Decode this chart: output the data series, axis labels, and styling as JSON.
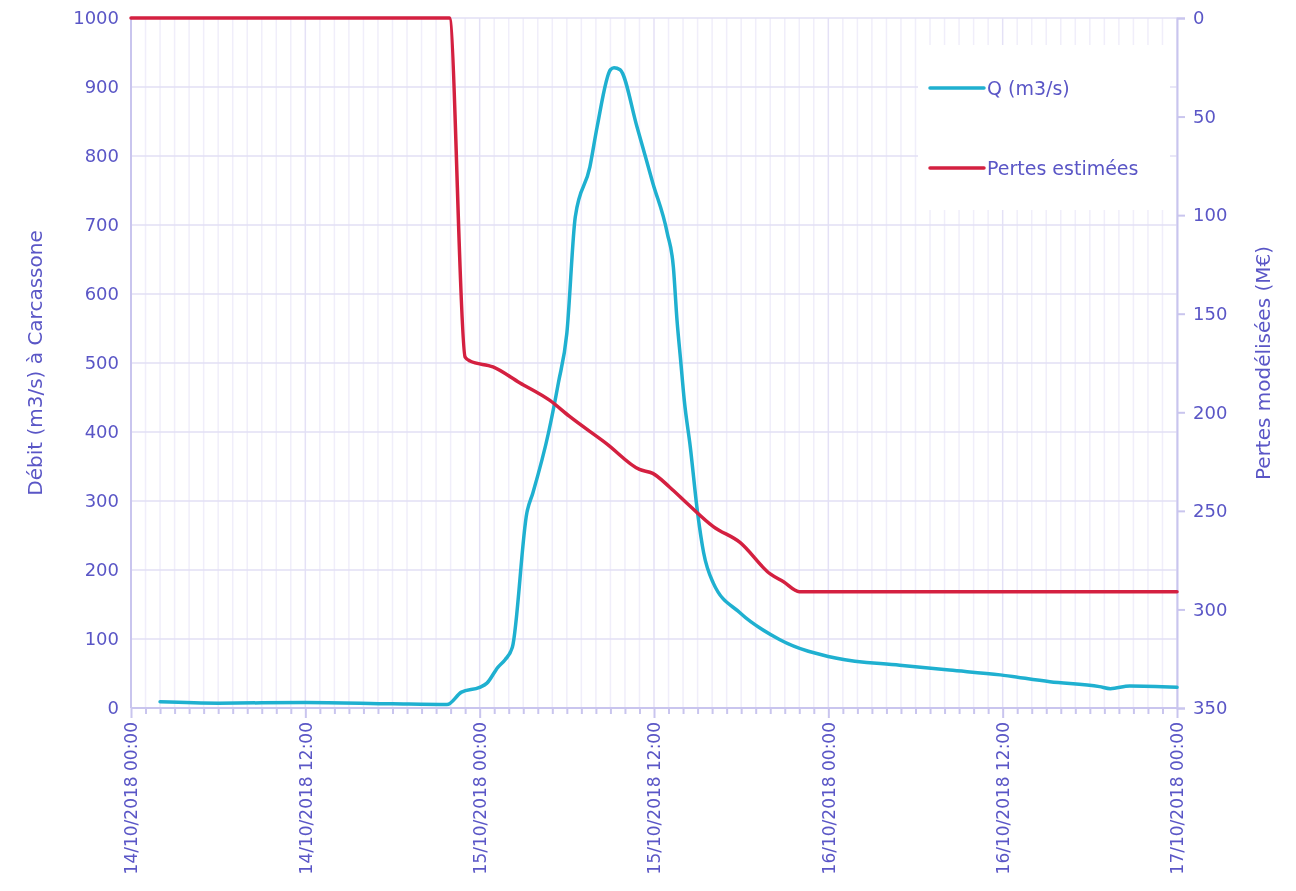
{
  "chart_data": {
    "type": "line",
    "xlabel": null,
    "ylabel": "Débit (m3/s) à Carcassone",
    "y2label": "Pertes modélisées (M€)",
    "xlim": [
      "2018-10-14T00:00",
      "2018-10-17T00:00"
    ],
    "xticks": [
      {
        "value": "2018-10-14T00:00",
        "label": "14/10/2018 00:00"
      },
      {
        "value": "2018-10-14T01:00",
        "label": null
      },
      {
        "value": "2018-10-14T02:00",
        "label": null
      },
      {
        "value": "2018-10-14T03:00",
        "label": null
      },
      {
        "value": "2018-10-14T04:00",
        "label": null
      },
      {
        "value": "2018-10-14T05:00",
        "label": null
      },
      {
        "value": "2018-10-14T06:00",
        "label": null
      },
      {
        "value": "2018-10-14T07:00",
        "label": null
      },
      {
        "value": "2018-10-14T08:00",
        "label": null
      },
      {
        "value": "2018-10-14T09:00",
        "label": null
      },
      {
        "value": "2018-10-14T10:00",
        "label": null
      },
      {
        "value": "2018-10-14T11:00",
        "label": null
      },
      {
        "value": "2018-10-14T12:00",
        "label": "14/10/2018 12:00"
      },
      {
        "value": "2018-10-14T13:00",
        "label": null
      },
      {
        "value": "2018-10-14T14:00",
        "label": null
      },
      {
        "value": "2018-10-14T15:00",
        "label": null
      },
      {
        "value": "2018-10-14T16:00",
        "label": null
      },
      {
        "value": "2018-10-14T17:00",
        "label": null
      },
      {
        "value": "2018-10-14T18:00",
        "label": null
      },
      {
        "value": "2018-10-14T19:00",
        "label": null
      },
      {
        "value": "2018-10-14T20:00",
        "label": null
      },
      {
        "value": "2018-10-14T21:00",
        "label": null
      },
      {
        "value": "2018-10-14T22:00",
        "label": null
      },
      {
        "value": "2018-10-14T23:00",
        "label": null
      },
      {
        "value": "2018-10-15T00:00",
        "label": "15/10/2018 00:00"
      },
      {
        "value": "2018-10-15T01:00",
        "label": null
      },
      {
        "value": "2018-10-15T02:00",
        "label": null
      },
      {
        "value": "2018-10-15T03:00",
        "label": null
      },
      {
        "value": "2018-10-15T04:00",
        "label": null
      },
      {
        "value": "2018-10-15T05:00",
        "label": null
      },
      {
        "value": "2018-10-15T06:00",
        "label": null
      },
      {
        "value": "2018-10-15T07:00",
        "label": null
      },
      {
        "value": "2018-10-15T08:00",
        "label": null
      },
      {
        "value": "2018-10-15T09:00",
        "label": null
      },
      {
        "value": "2018-10-15T10:00",
        "label": null
      },
      {
        "value": "2018-10-15T11:00",
        "label": null
      },
      {
        "value": "2018-10-15T12:00",
        "label": "15/10/2018 12:00"
      },
      {
        "value": "2018-10-15T13:00",
        "label": null
      },
      {
        "value": "2018-10-15T14:00",
        "label": null
      },
      {
        "value": "2018-10-15T15:00",
        "label": null
      },
      {
        "value": "2018-10-15T16:00",
        "label": null
      },
      {
        "value": "2018-10-15T17:00",
        "label": null
      },
      {
        "value": "2018-10-15T18:00",
        "label": null
      },
      {
        "value": "2018-10-15T19:00",
        "label": null
      },
      {
        "value": "2018-10-15T20:00",
        "label": null
      },
      {
        "value": "2018-10-15T21:00",
        "label": null
      },
      {
        "value": "2018-10-15T22:00",
        "label": null
      },
      {
        "value": "2018-10-15T23:00",
        "label": null
      },
      {
        "value": "2018-10-16T00:00",
        "label": "16/10/2018 00:00"
      },
      {
        "value": "2018-10-16T01:00",
        "label": null
      },
      {
        "value": "2018-10-16T02:00",
        "label": null
      },
      {
        "value": "2018-10-16T03:00",
        "label": null
      },
      {
        "value": "2018-10-16T04:00",
        "label": null
      },
      {
        "value": "2018-10-16T05:00",
        "label": null
      },
      {
        "value": "2018-10-16T06:00",
        "label": null
      },
      {
        "value": "2018-10-16T07:00",
        "label": null
      },
      {
        "value": "2018-10-16T08:00",
        "label": null
      },
      {
        "value": "2018-10-16T09:00",
        "label": null
      },
      {
        "value": "2018-10-16T10:00",
        "label": null
      },
      {
        "value": "2018-10-16T11:00",
        "label": null
      },
      {
        "value": "2018-10-16T12:00",
        "label": "16/10/2018 12:00"
      },
      {
        "value": "2018-10-16T13:00",
        "label": null
      },
      {
        "value": "2018-10-16T14:00",
        "label": null
      },
      {
        "value": "2018-10-16T15:00",
        "label": null
      },
      {
        "value": "2018-10-16T16:00",
        "label": null
      },
      {
        "value": "2018-10-16T17:00",
        "label": null
      },
      {
        "value": "2018-10-16T18:00",
        "label": null
      },
      {
        "value": "2018-10-16T19:00",
        "label": null
      },
      {
        "value": "2018-10-16T20:00",
        "label": null
      },
      {
        "value": "2018-10-16T21:00",
        "label": null
      },
      {
        "value": "2018-10-16T22:00",
        "label": null
      },
      {
        "value": "2018-10-16T23:00",
        "label": null
      },
      {
        "value": "2018-10-17T00:00",
        "label": "17/10/2018 00:00"
      }
    ],
    "ylim": [
      0,
      1000
    ],
    "yticks": [
      0,
      100,
      200,
      300,
      400,
      500,
      600,
      700,
      800,
      900,
      1000
    ],
    "y2lim": [
      350,
      0
    ],
    "y2ticks": [
      0,
      50,
      100,
      150,
      200,
      250,
      300,
      350
    ],
    "grid": true,
    "legend": "top right",
    "series": [
      {
        "name": "Q (m3/s)",
        "color": "#1fb0d0",
        "x": [
          "2018-10-14T02:00",
          "2018-10-14T06:00",
          "2018-10-14T12:00",
          "2018-10-14T18:00",
          "2018-10-14T21:45",
          "2018-10-14T22:45",
          "2018-10-15T00:00",
          "2018-10-15T00:30",
          "2018-10-15T01:15",
          "2018-10-15T01:45",
          "2018-10-15T02:15",
          "2018-10-15T03:15",
          "2018-10-15T03:40",
          "2018-10-15T04:45",
          "2018-10-15T05:25",
          "2018-10-15T06:00",
          "2018-10-15T06:35",
          "2018-10-15T07:35",
          "2018-10-15T08:05",
          "2018-10-15T09:00",
          "2018-10-15T09:15",
          "2018-10-15T09:40",
          "2018-10-15T10:50",
          "2018-10-15T11:55",
          "2018-10-15T12:55",
          "2018-10-15T13:20",
          "2018-10-15T13:35",
          "2018-10-15T13:50",
          "2018-10-15T14:05",
          "2018-10-15T14:30",
          "2018-10-15T15:00",
          "2018-10-15T15:25",
          "2018-10-15T16:05",
          "2018-10-15T17:55",
          "2018-10-15T20:40",
          "2018-10-16T00:35",
          "2018-10-16T04:55",
          "2018-10-16T08:20",
          "2018-10-16T11:50",
          "2018-10-16T15:15",
          "2018-10-16T18:40",
          "2018-10-16T19:25",
          "2018-10-16T20:45",
          "2018-10-17T00:00"
        ],
        "values": [
          9,
          7,
          8,
          6,
          5,
          23,
          30,
          36,
          59,
          70,
          88,
          283,
          312,
          400,
          471,
          543,
          712,
          784,
          842,
          925,
          928,
          925,
          842,
          761,
          688,
          639,
          562,
          504,
          446,
          378,
          283,
          225,
          181,
          138,
          99,
          72,
          62,
          55,
          48,
          38,
          31,
          28,
          32,
          30
        ]
      },
      {
        "name": "Pertes estimées",
        "color": "#d42040",
        "axis": "y2",
        "x": [
          "2018-10-14T00:00",
          "2018-10-14T21:30",
          "2018-10-14T21:55",
          "2018-10-14T23:00",
          "2018-10-14T23:20",
          "2018-10-15T00:55",
          "2018-10-15T02:45",
          "2018-10-15T04:50",
          "2018-10-15T06:10",
          "2018-10-15T08:45",
          "2018-10-15T11:00",
          "2018-10-15T11:55",
          "2018-10-15T13:05",
          "2018-10-15T14:15",
          "2018-10-15T16:05",
          "2018-10-15T17:55",
          "2018-10-15T20:00",
          "2018-10-15T20:55",
          "2018-10-15T22:00",
          "2018-10-17T00:00"
        ],
        "values": [
          0,
          0,
          0,
          172,
          174,
          177,
          185,
          194,
          202,
          216,
          229,
          231,
          238,
          246,
          258,
          266,
          282,
          286,
          291,
          291
        ]
      }
    ]
  }
}
